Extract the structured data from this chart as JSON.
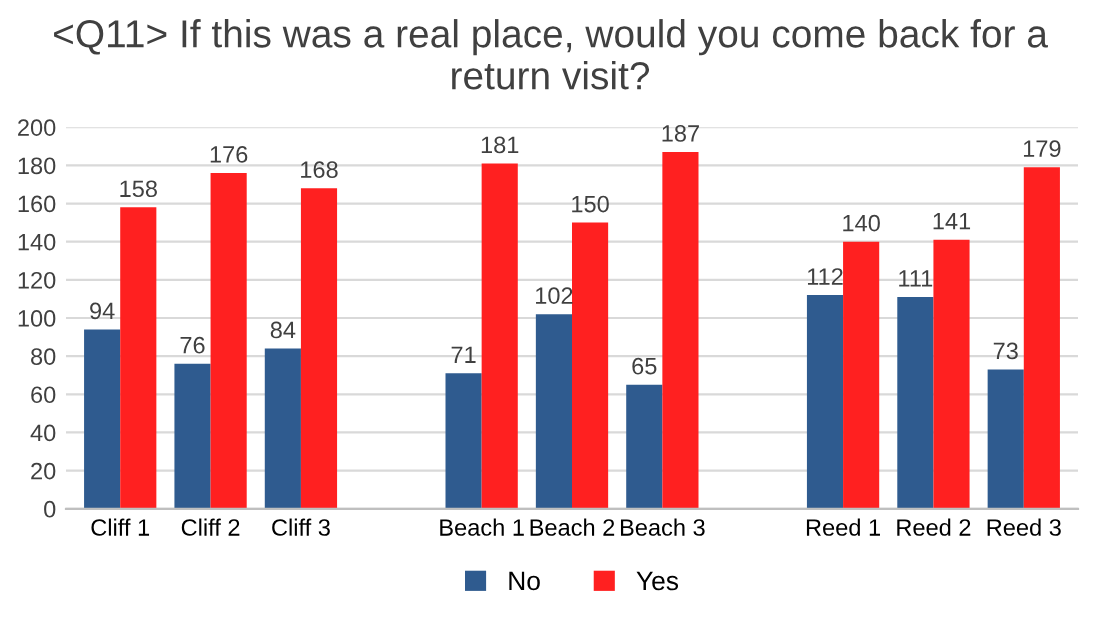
{
  "chart_data": {
    "type": "bar",
    "title": "<Q11> If this was a real place, would you come back for a return visit?",
    "categories": [
      "Cliff 1",
      "Cliff 2",
      "Cliff 3",
      null,
      "Beach 1",
      "Beach 2",
      "Beach 3",
      null,
      "Reed 1",
      "Reed 2",
      "Reed 3"
    ],
    "series": [
      {
        "name": "No",
        "color": "#2f5b8f",
        "values": [
          94,
          76,
          84,
          null,
          71,
          102,
          65,
          null,
          112,
          111,
          73
        ]
      },
      {
        "name": "Yes",
        "color": "#ff2020",
        "values": [
          158,
          176,
          168,
          null,
          181,
          150,
          187,
          null,
          140,
          141,
          179
        ]
      }
    ],
    "ylim": [
      0,
      200
    ],
    "yticks": [
      0,
      20,
      40,
      60,
      80,
      100,
      120,
      140,
      160,
      180,
      200
    ],
    "grid": "y",
    "legend": "bottom",
    "data_labels": true
  }
}
